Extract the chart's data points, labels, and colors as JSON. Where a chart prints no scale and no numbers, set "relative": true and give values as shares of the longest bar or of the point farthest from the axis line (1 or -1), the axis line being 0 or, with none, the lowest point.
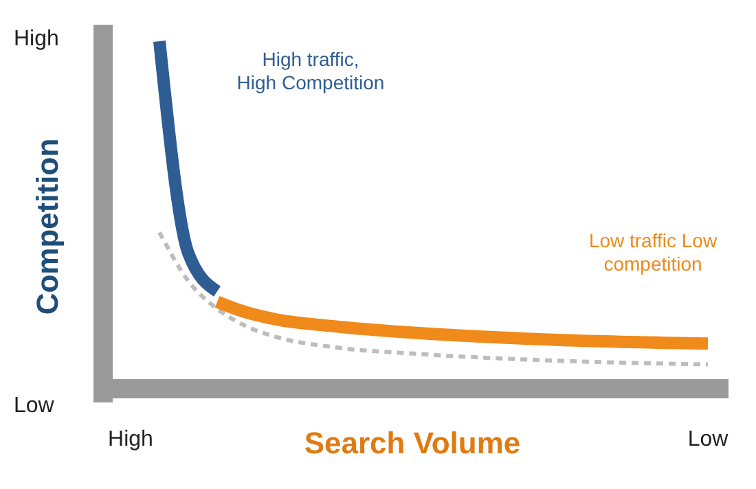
{
  "chart_data": {
    "type": "line",
    "relative": true,
    "xlabel": "Search Volume",
    "ylabel": "Competition",
    "categories": [
      "High",
      null,
      null,
      null,
      null,
      null,
      null,
      null,
      null,
      null,
      null,
      null,
      null,
      null,
      null,
      null,
      null,
      null,
      null,
      null,
      "Low"
    ],
    "annotations": [
      "High",
      "Low"
    ],
    "grid": false,
    "marker": "none",
    "series": [
      {
        "color": "#bdbdbd",
        "line_style": "dashed",
        "values": [
          null,
          0.45,
          0.31,
          0.23,
          0.18,
          0.15,
          null,
          0.12,
          null,
          null,
          0.1,
          null,
          null,
          null,
          null,
          0.08,
          null,
          null,
          null,
          null,
          0.07
        ]
      },
      {
        "name": "High traffic, High Competition",
        "color": "#2e5d93",
        "line_style": "solid",
        "values": [
          null,
          1,
          0.39,
          0.28,
          null,
          null,
          null,
          null,
          null,
          null,
          null,
          null,
          null,
          null,
          null,
          null,
          null,
          null,
          null,
          null,
          null
        ]
      },
      {
        "name": "Low traffic Low competition",
        "color": "#ef8a1b",
        "line_style": "solid",
        "values": [
          null,
          null,
          null,
          0.25,
          0.22,
          0.2,
          null,
          0.18,
          null,
          null,
          0.16,
          null,
          null,
          null,
          null,
          0.14,
          null,
          null,
          null,
          null,
          0.13
        ]
      }
    ]
  }
}
